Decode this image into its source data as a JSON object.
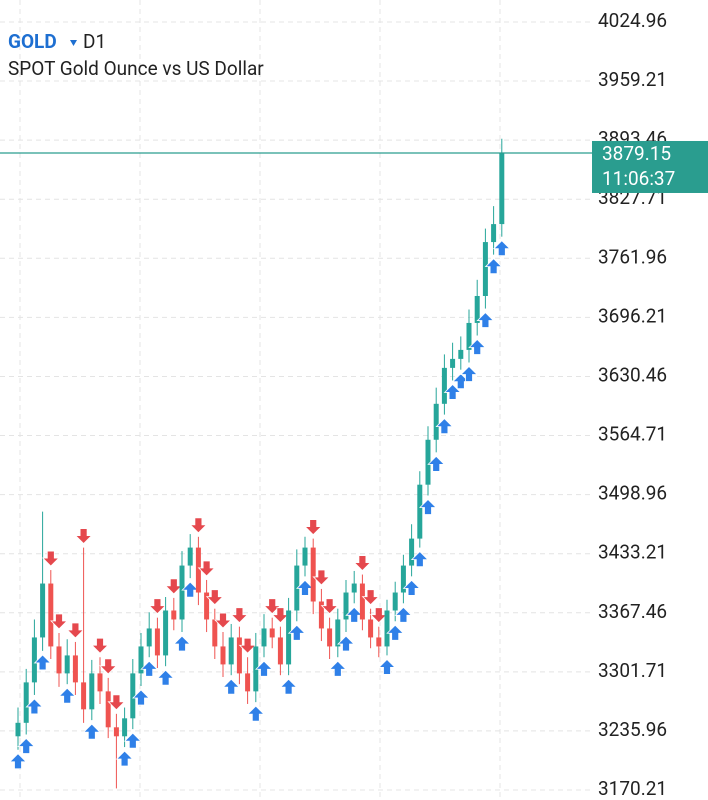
{
  "chart_data": {
    "type": "candlestick",
    "title": "GOLD",
    "timeframe": "D1",
    "subtitle": "SPOT Gold Ounce vs US Dollar",
    "open": [
      3230,
      3245,
      3290,
      3340,
      3400,
      3330,
      3300,
      3320,
      3290,
      3260,
      3300,
      3280,
      3240,
      3230,
      3250,
      3300,
      3330,
      3350,
      3320,
      3370,
      3360,
      3420,
      3440,
      3390,
      3360,
      3330,
      3310,
      3340,
      3300,
      3280,
      3330,
      3350,
      3340,
      3310,
      3370,
      3420,
      3440,
      3380,
      3350,
      3330,
      3360,
      3390,
      3400,
      3360,
      3340,
      3330,
      3370,
      3390,
      3420,
      3450,
      3510,
      3560,
      3600,
      3640,
      3650,
      3660,
      3690,
      3720,
      3780,
      3800
    ],
    "high": [
      3262,
      3305,
      3360,
      3480,
      3415,
      3345,
      3338,
      3335,
      3440,
      3315,
      3318,
      3295,
      3255,
      3262,
      3316,
      3345,
      3368,
      3362,
      3385,
      3384,
      3436,
      3455,
      3452,
      3404,
      3372,
      3346,
      3355,
      3352,
      3318,
      3345,
      3366,
      3362,
      3352,
      3384,
      3438,
      3452,
      3450,
      3394,
      3362,
      3372,
      3404,
      3414,
      3410,
      3372,
      3352,
      3382,
      3402,
      3432,
      3466,
      3525,
      3575,
      3618,
      3655,
      3668,
      3675,
      3705,
      3738,
      3795,
      3820,
      3895
    ],
    "low": [
      3215,
      3232,
      3276,
      3325,
      3316,
      3285,
      3288,
      3276,
      3245,
      3248,
      3266,
      3228,
      3172,
      3218,
      3238,
      3286,
      3318,
      3306,
      3308,
      3348,
      3346,
      3406,
      3376,
      3346,
      3316,
      3296,
      3298,
      3288,
      3266,
      3268,
      3318,
      3328,
      3298,
      3298,
      3358,
      3408,
      3366,
      3336,
      3316,
      3318,
      3346,
      3378,
      3348,
      3328,
      3318,
      3320,
      3358,
      3378,
      3408,
      3440,
      3498,
      3546,
      3588,
      3626,
      3638,
      3646,
      3676,
      3706,
      3766,
      3786
    ],
    "close": [
      3245,
      3290,
      3340,
      3400,
      3330,
      3300,
      3320,
      3290,
      3260,
      3300,
      3280,
      3240,
      3230,
      3250,
      3300,
      3330,
      3350,
      3320,
      3370,
      3360,
      3420,
      3440,
      3390,
      3360,
      3330,
      3310,
      3340,
      3300,
      3280,
      3330,
      3350,
      3340,
      3310,
      3370,
      3420,
      3440,
      3380,
      3350,
      3330,
      3360,
      3390,
      3400,
      3360,
      3340,
      3330,
      3370,
      3390,
      3420,
      3450,
      3510,
      3560,
      3600,
      3640,
      3650,
      3660,
      3690,
      3720,
      3780,
      3800,
      3879.15
    ],
    "up_color": "#26a69a",
    "down_color": "#ef5350",
    "buy_color": "#2f80e8",
    "sell_color": "#e5484d",
    "ylim": [
      3159.1,
      4049.4
    ],
    "yticks": [
      4024.96,
      3959.21,
      3893.46,
      3827.71,
      3761.96,
      3696.21,
      3630.46,
      3564.71,
      3498.96,
      3433.21,
      3367.46,
      3301.71,
      3235.96,
      3170.21
    ],
    "grid": true,
    "current_price": 3879.15,
    "current_time": "11:06:37",
    "current_color": "#2a9d8f"
  }
}
